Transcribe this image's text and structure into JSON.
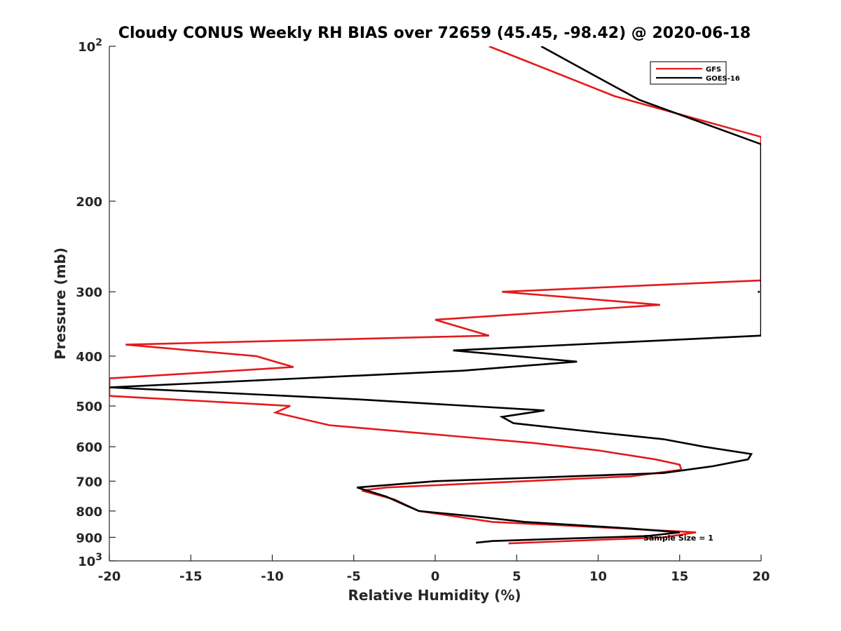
{
  "chart_data": {
    "type": "line",
    "title": "Cloudy CONUS Weekly RH BIAS over 72659 (45.45, -98.42) @ 2020-06-18",
    "xlabel": "Relative Humidity (%)",
    "ylabel": "Pressure (mb)",
    "xlim": [
      -20,
      20
    ],
    "ylim": [
      100,
      1000
    ],
    "y_scale": "log",
    "y_reversed": true,
    "grid": false,
    "legend_position": "top-right",
    "x_ticks": [
      "-20",
      "-15",
      "-10",
      "-5",
      "0",
      "5",
      "10",
      "15",
      "20"
    ],
    "x_tick_values": [
      -20,
      -15,
      -10,
      -5,
      0,
      5,
      10,
      15,
      20
    ],
    "y_ticks": [
      {
        "value": 100,
        "label": "10",
        "sup": "2"
      },
      {
        "value": 200,
        "label": "200",
        "sup": ""
      },
      {
        "value": 300,
        "label": "300",
        "sup": ""
      },
      {
        "value": 400,
        "label": "400",
        "sup": ""
      },
      {
        "value": 500,
        "label": "500",
        "sup": ""
      },
      {
        "value": 600,
        "label": "600",
        "sup": ""
      },
      {
        "value": 700,
        "label": "700",
        "sup": ""
      },
      {
        "value": 800,
        "label": "800",
        "sup": ""
      },
      {
        "value": 900,
        "label": "900",
        "sup": ""
      },
      {
        "value": 1000,
        "label": "10",
        "sup": "3"
      }
    ],
    "series": [
      {
        "name": "GFS",
        "color": "#e41a1c",
        "points": [
          [
            3.3,
            100
          ],
          [
            11,
            125
          ],
          [
            20,
            150
          ],
          [
            20,
            285
          ],
          [
            4.1,
            300
          ],
          [
            13.8,
            318
          ],
          [
            0,
            340
          ],
          [
            3.3,
            365
          ],
          [
            -19,
            380
          ],
          [
            -11,
            400
          ],
          [
            -8.7,
            420
          ],
          [
            -20,
            442
          ],
          [
            -20,
            478
          ],
          [
            -8.9,
            500
          ],
          [
            -9.8,
            515
          ],
          [
            -6.5,
            545
          ],
          [
            6,
            590
          ],
          [
            10,
            610
          ],
          [
            13.5,
            635
          ],
          [
            15,
            650
          ],
          [
            15.1,
            665
          ],
          [
            12,
            685
          ],
          [
            -3,
            720
          ],
          [
            -4.5,
            730
          ],
          [
            -2.5,
            760
          ],
          [
            -1,
            800
          ],
          [
            3.5,
            840
          ],
          [
            10,
            860
          ],
          [
            16,
            880
          ],
          [
            14,
            900
          ],
          [
            10,
            910
          ],
          [
            4.5,
            925
          ]
        ]
      },
      {
        "name": "GOES-16",
        "color": "#000000",
        "points": [
          [
            6.5,
            100
          ],
          [
            10,
            115
          ],
          [
            12.5,
            127
          ],
          [
            20,
            155
          ],
          [
            20,
            365
          ],
          [
            1.1,
            390
          ],
          [
            8.7,
            410
          ],
          [
            1.7,
            427
          ],
          [
            -20,
            460
          ],
          [
            -5,
            485
          ],
          [
            6.7,
            510
          ],
          [
            4.1,
            525
          ],
          [
            4.8,
            540
          ],
          [
            10.5,
            565
          ],
          [
            14,
            580
          ],
          [
            16.5,
            600
          ],
          [
            19.4,
            620
          ],
          [
            19.2,
            635
          ],
          [
            17,
            655
          ],
          [
            14,
            675
          ],
          [
            0,
            700
          ],
          [
            -4.8,
            720
          ],
          [
            -3,
            750
          ],
          [
            -1.8,
            780
          ],
          [
            -1,
            800
          ],
          [
            2.5,
            820
          ],
          [
            5.5,
            840
          ],
          [
            12,
            865
          ],
          [
            15,
            880
          ],
          [
            13,
            895
          ],
          [
            8,
            905
          ],
          [
            3.5,
            915
          ],
          [
            2.5,
            922
          ]
        ]
      }
    ],
    "stray_marks": [
      {
        "series": "GOES-16",
        "x": [
          19.8,
          20
        ],
        "y": 300
      }
    ],
    "annotation": "Sample Size = 1"
  }
}
